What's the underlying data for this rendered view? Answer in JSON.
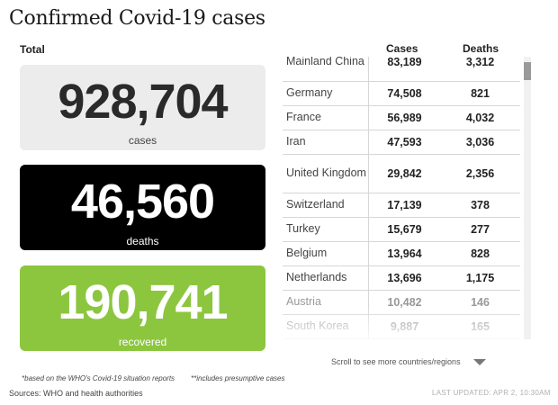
{
  "title": "Confirmed Covid-19 cases",
  "totals": {
    "label": "Total",
    "cases": {
      "value": "928,704",
      "label": "cases",
      "color": "#ececec"
    },
    "deaths": {
      "value": "46,560",
      "label": "deaths",
      "color": "#000000"
    },
    "recovered": {
      "value": "190,741",
      "label": "recovered",
      "color": "#8cc63f"
    }
  },
  "table": {
    "columns": {
      "cases": "Cases",
      "deaths": "Deaths"
    },
    "rows": [
      {
        "country": "Mainland China",
        "cases": "83,189",
        "deaths": "3,312"
      },
      {
        "country": "Germany",
        "cases": "74,508",
        "deaths": "821"
      },
      {
        "country": "France",
        "cases": "56,989",
        "deaths": "4,032"
      },
      {
        "country": "Iran",
        "cases": "47,593",
        "deaths": "3,036"
      },
      {
        "country": "United Kingdom",
        "cases": "29,842",
        "deaths": "2,356"
      },
      {
        "country": "Switzerland",
        "cases": "17,139",
        "deaths": "378"
      },
      {
        "country": "Turkey",
        "cases": "15,679",
        "deaths": "277"
      },
      {
        "country": "Belgium",
        "cases": "13,964",
        "deaths": "828"
      },
      {
        "country": "Netherlands",
        "cases": "13,696",
        "deaths": "1,175"
      },
      {
        "country": "Austria",
        "cases": "10,482",
        "deaths": "146"
      },
      {
        "country": "South Korea",
        "cases": "9,887",
        "deaths": "165"
      }
    ]
  },
  "scroll_hint": "Scroll to see more countries/regions",
  "footnotes": {
    "who": "*based on the WHO's Covid-19 situation reports",
    "presumptive": "**includes presumptive cases"
  },
  "sources": "Sources: WHO and health authorities",
  "last_updated": "LAST UPDATED: APR 2, 10:30AM"
}
